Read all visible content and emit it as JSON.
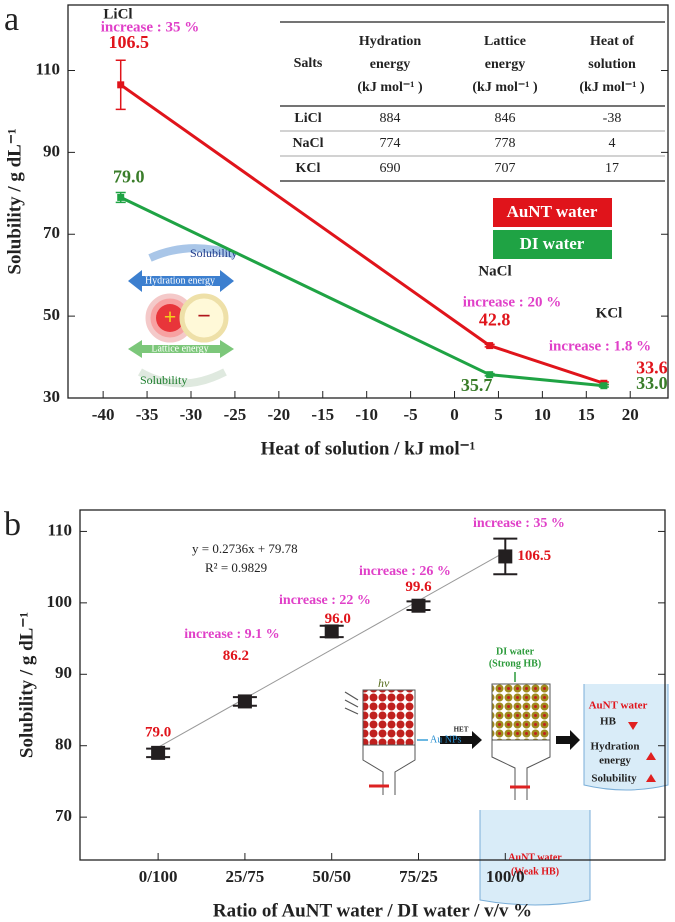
{
  "chart_data": [
    {
      "panel": "a",
      "type": "line",
      "x": [
        -38,
        4,
        17
      ],
      "series": [
        {
          "name": "AuNT water",
          "color": "#e0141b",
          "values": [
            106.5,
            42.8,
            33.6
          ],
          "errors": [
            6,
            0.3,
            0.3
          ],
          "value_labels": [
            "106.5",
            "42.8",
            "33.6"
          ]
        },
        {
          "name": "DI water",
          "color": "#1fa344",
          "values": [
            79.0,
            35.7,
            33.0
          ],
          "errors": [
            1.2,
            0.3,
            0.3
          ],
          "value_labels": [
            "79.0",
            "35.7",
            "33.0"
          ]
        }
      ],
      "xlabel": "Heat of solution / kJ mol⁻¹",
      "ylabel": "Solubility / g dL⁻¹",
      "xlim": [
        -44,
        24.3
      ],
      "ylim": [
        30,
        126
      ],
      "xticks": [
        -40,
        -35,
        -30,
        -25,
        -20,
        -15,
        -10,
        -5,
        0,
        5,
        10,
        15,
        20
      ],
      "yticks": [
        30,
        50,
        70,
        90,
        110
      ],
      "annotations": [
        "LiCl",
        "increase : 35 %",
        "NaCl",
        "increase : 20 %",
        "KCl",
        "increase : 1.8 %"
      ],
      "table": {
        "header": [
          [
            "Salts"
          ],
          [
            "Hydration",
            "energy",
            "(kJ mol⁻¹ )"
          ],
          [
            "Lattice",
            "energy",
            "(kJ mol⁻¹ )"
          ],
          [
            "Heat of",
            "solution",
            "(kJ mol⁻¹ )"
          ]
        ],
        "rows": [
          [
            "LiCl",
            884,
            846,
            -38
          ],
          [
            "NaCl",
            774,
            778,
            4
          ],
          [
            "KCl",
            690,
            707,
            17
          ]
        ]
      },
      "inset_labels": [
        "Solubility",
        "Hydration energy",
        "Lattice energy",
        "Solubility",
        "+",
        "−"
      ]
    },
    {
      "panel": "b",
      "type": "scatter",
      "x": [
        0,
        25,
        50,
        75,
        100
      ],
      "values": [
        79.0,
        86.2,
        96.0,
        99.6,
        106.5
      ],
      "errors": [
        0.6,
        0.6,
        0.8,
        0.6,
        2.5
      ],
      "value_labels": [
        "79.0",
        "86.2",
        "96.0",
        "99.6",
        "106.5"
      ],
      "color": "#231f20",
      "label_color": "#e0141b",
      "fit": {
        "slope": 0.2736,
        "intercept": 79.78,
        "equation": "y = 0.2736x + 79.78",
        "r2": "R² = 0.9829"
      },
      "xlabel": "Ratio of AuNT water / DI water / v/v %",
      "ylabel": "Solubility / g dL⁻¹",
      "xlim": [
        -22.5,
        146
      ],
      "ylim": [
        64,
        113
      ],
      "xticks": [
        {
          "value": 0,
          "label": "0/100"
        },
        {
          "value": 25,
          "label": "25/75"
        },
        {
          "value": 50,
          "label": "50/50"
        },
        {
          "value": 75,
          "label": "75/25"
        },
        {
          "value": 100,
          "label": "100/0"
        }
      ],
      "yticks": [
        70,
        80,
        90,
        100,
        110
      ],
      "annotations": [
        "increase : 9.1 %",
        "increase : 22 %",
        "increase : 26 %",
        "increase : 35 %"
      ],
      "schematic_labels": [
        "hν",
        "Au NPs",
        "HET",
        "DI water",
        "(Strong HB)",
        "AuNT water",
        "(Weak HB)",
        "AuNT water",
        "HB",
        "Hydration",
        "energy",
        "Solubility"
      ]
    }
  ]
}
